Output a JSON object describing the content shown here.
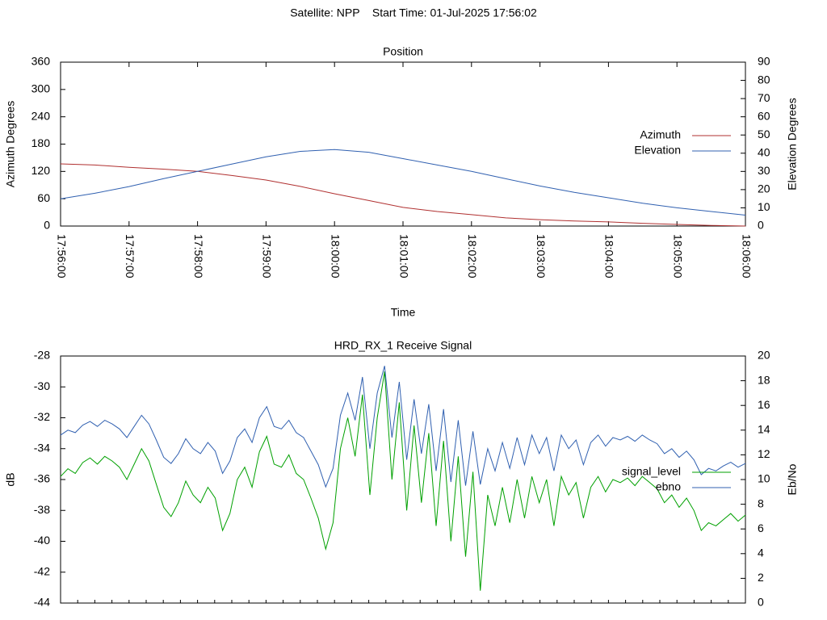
{
  "header": {
    "title": "Satellite: NPP    Start Time: 01-Jul-2025 17:56:02"
  },
  "chart_data": [
    {
      "type": "line",
      "title": "Position",
      "x_label": "Time",
      "y_label": "Azimuth Degrees",
      "y2_label": "Elevation Degrees",
      "x": [
        "17:56:00",
        "17:56:30",
        "17:57:00",
        "17:57:30",
        "17:58:00",
        "17:58:30",
        "17:59:00",
        "17:59:30",
        "18:00:00",
        "18:00:30",
        "18:01:00",
        "18:01:30",
        "18:02:00",
        "18:02:30",
        "18:03:00",
        "18:03:30",
        "18:04:00",
        "18:04:30",
        "18:05:00",
        "18:05:30",
        "18:06:00"
      ],
      "xlim": [
        "17:56:00",
        "18:06:00"
      ],
      "xticks": [
        "17:56:00",
        "17:57:00",
        "17:58:00",
        "17:59:00",
        "18:00:00",
        "18:01:00",
        "18:02:00",
        "18:03:00",
        "18:04:00",
        "18:05:00",
        "18:06:00"
      ],
      "ylim": [
        0,
        360
      ],
      "yticks": [
        0,
        60,
        120,
        180,
        240,
        300,
        360
      ],
      "y2lim": [
        0,
        90
      ],
      "y2ticks": [
        0,
        10,
        20,
        30,
        40,
        50,
        60,
        70,
        80,
        90
      ],
      "legend": "right",
      "series": [
        {
          "name": "Azimuth",
          "color": "#b03030",
          "values": [
            136.5,
            134,
            129,
            125,
            120,
            111,
            101,
            87,
            71,
            56,
            41,
            32,
            25,
            18,
            14,
            11,
            9,
            6,
            3.5,
            1.5,
            0
          ]
        },
        {
          "name": "Elevation",
          "color": "#3060b0",
          "axis": "y2",
          "values": [
            15,
            18,
            21.7,
            26,
            30,
            34,
            38,
            41,
            42,
            40.5,
            37,
            33.5,
            30,
            26,
            22,
            18.5,
            15.5,
            12.5,
            10,
            8,
            6
          ]
        }
      ]
    },
    {
      "type": "line",
      "title": "HRD_RX_1 Receive Signal",
      "y_label": "dB",
      "y2_label": "Eb/No",
      "ylim": [
        -44,
        -28
      ],
      "yticks": [
        -44,
        -42,
        -40,
        -38,
        -36,
        -34,
        -32,
        -30,
        -28
      ],
      "y2lim": [
        0,
        20
      ],
      "y2ticks": [
        0,
        2,
        4,
        6,
        8,
        10,
        12,
        14,
        16,
        18,
        20
      ],
      "legend": "right",
      "series": [
        {
          "name": "signal_level",
          "color": "#00a000",
          "values": [
            -35.8,
            -35.3,
            -35.6,
            -34.9,
            -34.6,
            -35.0,
            -34.5,
            -34.8,
            -35.2,
            -36.0,
            -35.0,
            -34.0,
            -34.8,
            -36.3,
            -37.8,
            -38.4,
            -37.5,
            -36.1,
            -37.0,
            -37.5,
            -36.5,
            -37.2,
            -39.3,
            -38.2,
            -36.0,
            -35.2,
            -36.5,
            -34.2,
            -33.2,
            -35.0,
            -35.2,
            -34.4,
            -35.6,
            -36.0,
            -37.2,
            -38.5,
            -40.5,
            -38.8,
            -34.0,
            -32.0,
            -34.5,
            -30.5,
            -37.0,
            -32.0,
            -29.0,
            -36.0,
            -31.0,
            -38.0,
            -32.5,
            -37.5,
            -33.0,
            -39.0,
            -33.5,
            -40.0,
            -34.5,
            -41.0,
            -35.5,
            -43.2,
            -37.0,
            -39.0,
            -36.5,
            -38.8,
            -36.0,
            -38.5,
            -35.8,
            -37.5,
            -36.0,
            -39.0,
            -35.8,
            -37.0,
            -36.2,
            -38.5,
            -36.5,
            -35.8,
            -36.8,
            -36.0,
            -36.2,
            -35.9,
            -36.4,
            -35.8,
            -36.2,
            -36.6,
            -37.5,
            -37.0,
            -37.8,
            -37.2,
            -38.0,
            -39.3,
            -38.8,
            -39.0,
            -38.6,
            -38.2,
            -38.7,
            -38.3
          ]
        },
        {
          "name": "ebno",
          "color": "#3060b0",
          "axis": "y2",
          "values": [
            13.6,
            14.0,
            13.8,
            14.4,
            14.7,
            14.3,
            14.8,
            14.5,
            14.1,
            13.4,
            14.3,
            15.2,
            14.5,
            13.2,
            11.8,
            11.3,
            12.1,
            13.3,
            12.5,
            12.1,
            13.0,
            12.3,
            10.5,
            11.5,
            13.4,
            14.1,
            13.0,
            15.0,
            15.9,
            14.3,
            14.1,
            14.8,
            13.8,
            13.4,
            12.3,
            11.2,
            9.4,
            10.9,
            15.2,
            17.0,
            14.8,
            18.3,
            12.5,
            17.0,
            19.2,
            13.4,
            17.9,
            11.6,
            16.5,
            12.1,
            16.1,
            10.7,
            15.7,
            9.8,
            14.8,
            9.5,
            13.9,
            9.6,
            12.5,
            10.7,
            13.0,
            10.9,
            13.4,
            11.2,
            13.6,
            12.1,
            13.4,
            10.7,
            13.6,
            12.5,
            13.2,
            11.2,
            13.0,
            13.6,
            12.7,
            13.4,
            13.2,
            13.5,
            13.1,
            13.6,
            13.2,
            12.9,
            12.1,
            12.5,
            11.8,
            12.3,
            11.6,
            10.4,
            10.9,
            10.7,
            11.1,
            11.4,
            11.0,
            11.3
          ]
        }
      ]
    }
  ]
}
